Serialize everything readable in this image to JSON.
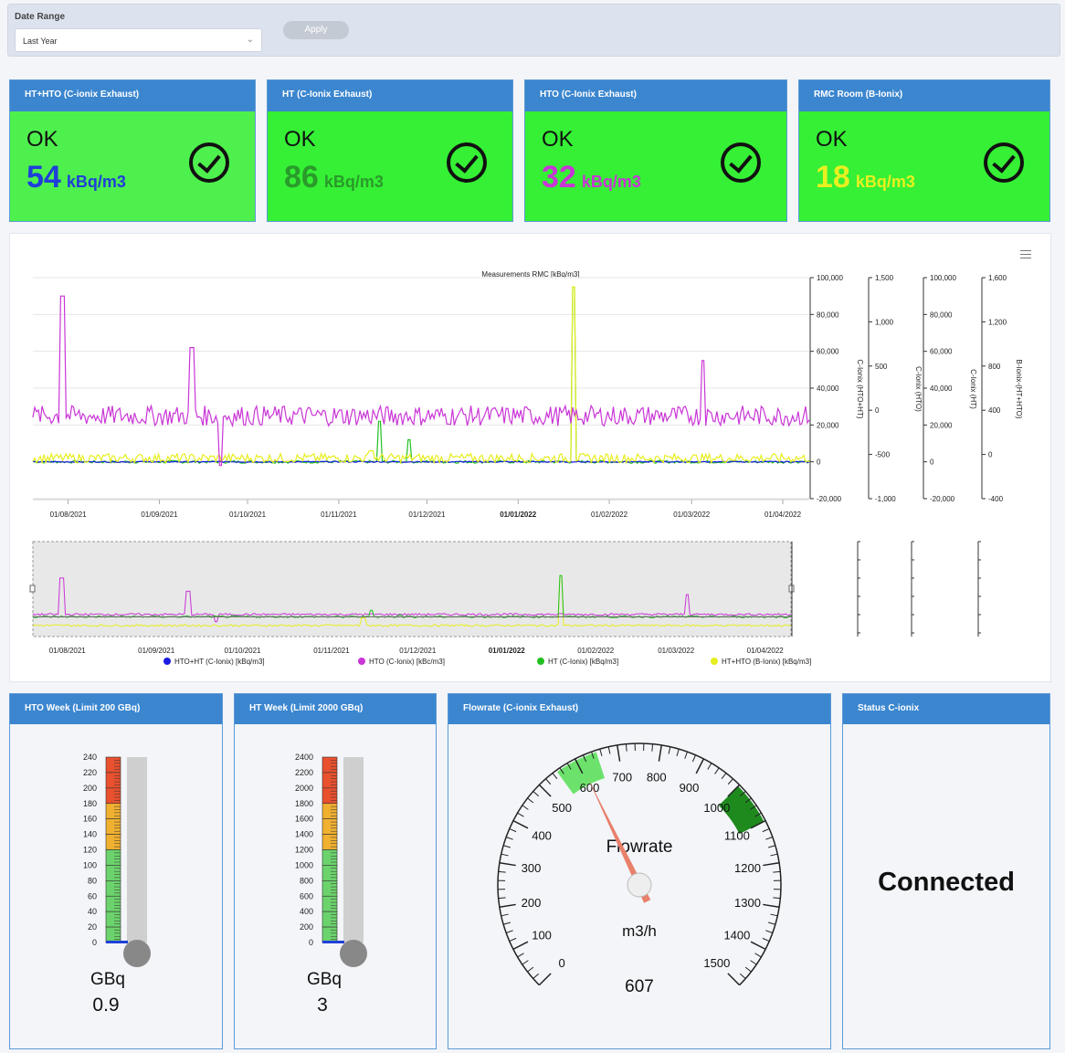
{
  "filter": {
    "date_range_label": "Date Range",
    "date_range_value": "Last Year",
    "apply_label": "Apply"
  },
  "status_cards": [
    {
      "title": "HT+HTO (C-ionix Exhaust)",
      "status": "OK",
      "value": "54",
      "unit": "kBq/m3",
      "color": "#1f3fd8",
      "bg": "#4ef04e"
    },
    {
      "title": "HT (C-Ionix Exhaust)",
      "status": "OK",
      "value": "86",
      "unit": "kBq/m3",
      "color": "#2a9a2a",
      "bg": "#35f035"
    },
    {
      "title": "HTO (C-Ionix Exhaust)",
      "status": "OK",
      "value": "32",
      "unit": "kBq/m3",
      "color": "#c935d6",
      "bg": "#35f035"
    },
    {
      "title": "RMC Room (B-Ionix)",
      "status": "OK",
      "value": "18",
      "unit": "kBq/m3",
      "color": "#e8f020",
      "bg": "#35f035"
    }
  ],
  "chart_data": {
    "type": "line",
    "title": "Measurements RMC [kBq/m3]",
    "x_ticks": [
      "01/08/2021",
      "01/09/2021",
      "01/10/2021",
      "01/11/2021",
      "01/12/2021",
      "01/01/2022",
      "01/02/2022",
      "01/03/2022",
      "01/04/2022"
    ],
    "x_range": [
      "2021-07-20",
      "2022-04-10"
    ],
    "axes": [
      {
        "label": "C-Ionix (HTO+HT)",
        "ticks": [
          "100,000",
          "80,000",
          "60,000",
          "40,000",
          "20,000",
          "0",
          "-20,000"
        ],
        "ylim": [
          -20000,
          100000
        ]
      },
      {
        "label": "C-Ionix (HTO)",
        "ticks": [
          "1,500",
          "1,000",
          "500",
          "0",
          "-500",
          "-1,000"
        ],
        "ylim": [
          -1000,
          1500
        ]
      },
      {
        "label": "C-Ionix (HT)",
        "ticks": [
          "100,000",
          "80,000",
          "60,000",
          "40,000",
          "20,000",
          "0",
          "-20,000"
        ],
        "ylim": [
          -20000,
          100000
        ]
      },
      {
        "label": "B-Ionix-(HT+HTO)",
        "ticks": [
          "1,600",
          "1,200",
          "800",
          "400",
          "0",
          "-400"
        ],
        "ylim": [
          -400,
          1600
        ]
      }
    ],
    "series": [
      {
        "name": "HTO+HT (C-Ionix) [kBq/m3]",
        "color": "#1a1ae0",
        "baseline": 0
      },
      {
        "name": "HTO (C-Ionix) [kBc/m3]",
        "color": "#c935d6",
        "baseline": 25000,
        "spikes": [
          {
            "x": "2021-07-30",
            "y": 90000
          },
          {
            "x": "2021-09-12",
            "y": 62000
          },
          {
            "x": "2021-09-22",
            "y": -2000
          },
          {
            "x": "2022-03-05",
            "y": 55000
          }
        ]
      },
      {
        "name": "HT (C-Ionix) [kBq/m3]",
        "color": "#22c022",
        "baseline": 0,
        "spikes": [
          {
            "x": "2021-11-15",
            "y": 22000
          },
          {
            "x": "2022-01-20",
            "y": 95000
          },
          {
            "x": "2021-11-25",
            "y": 12000
          }
        ]
      },
      {
        "name": "HT+HTO (B-Ionix) [kBq/m3]",
        "color": "#e6ee1e",
        "baseline": 2000,
        "spikes": [
          {
            "x": "2022-01-20",
            "y": 95000
          },
          {
            "x": "2021-11-12",
            "y": 6000
          }
        ]
      }
    ],
    "legend_position": "bottom"
  },
  "gauges": {
    "hto_week": {
      "title": "HTO Week (Limit 200 GBq)",
      "ticks": [
        "240",
        "220",
        "200",
        "180",
        "160",
        "140",
        "120",
        "100",
        "80",
        "60",
        "40",
        "20",
        "0"
      ],
      "unit": "GBq",
      "value": "0.9",
      "fill_fraction": 0.004
    },
    "ht_week": {
      "title": "HT Week (Limit 2000 GBq)",
      "ticks": [
        "2400",
        "2200",
        "2000",
        "1800",
        "1600",
        "1400",
        "1200",
        "1000",
        "800",
        "600",
        "400",
        "200",
        "0"
      ],
      "unit": "GBq",
      "value": "3",
      "fill_fraction": 0.001
    },
    "flowrate": {
      "title": "Flowrate (C-ionix Exhaust)",
      "label": "Flowrate",
      "unit": "m3/h",
      "value": "607",
      "min": 0,
      "max": 1500,
      "ticks": [
        "0",
        "100",
        "200",
        "300",
        "400",
        "500",
        "600",
        "700",
        "800",
        "900",
        "1000",
        "1100",
        "1200",
        "1300",
        "1400",
        "1500"
      ],
      "green_band": [
        550,
        650
      ],
      "dark_band": [
        1000,
        1100
      ],
      "needle_value": 607
    },
    "status": {
      "title": "Status C-ionix",
      "text": "Connected"
    }
  }
}
